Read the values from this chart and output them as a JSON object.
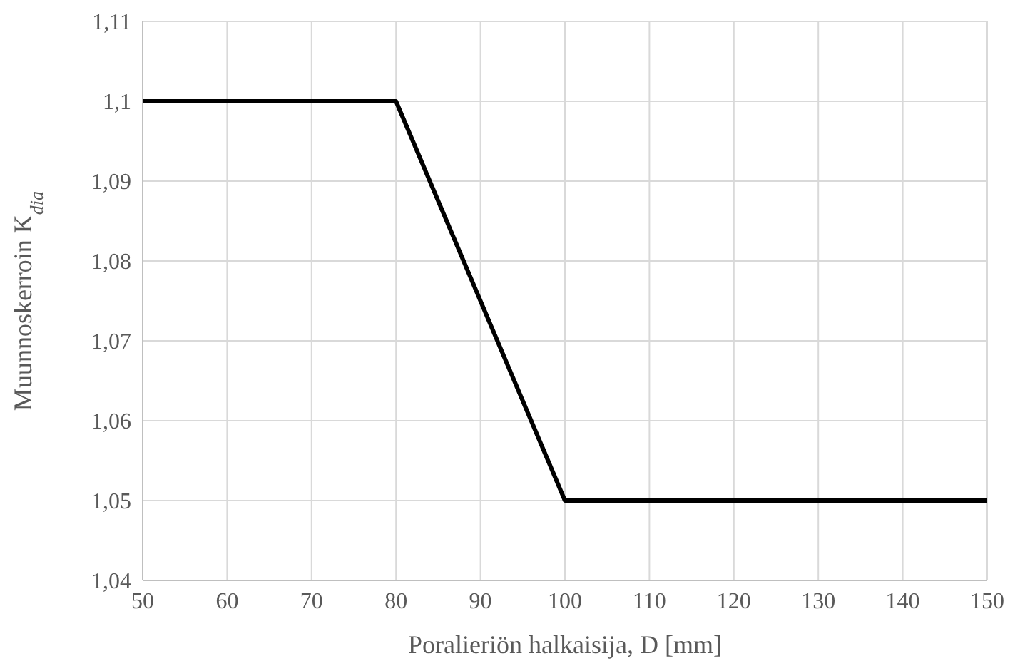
{
  "chart_data": {
    "type": "line",
    "xlabel": "Poralieriön halkaisija, D [mm]",
    "ylabel": "Muunnoskerroin K$_{dia}$",
    "x": [
      50,
      80,
      100,
      150
    ],
    "series": [
      {
        "color": "#000000",
        "values": [
          1.1,
          1.1,
          1.05,
          1.05
        ]
      }
    ],
    "xlim": [
      50,
      150
    ],
    "xticks": [
      50,
      60,
      70,
      80,
      90,
      100,
      110,
      120,
      130,
      140,
      150
    ],
    "ylim": [
      1.04,
      1.11
    ],
    "yticks": [
      {
        "value": 1.04,
        "label": "1,04"
      },
      {
        "value": 1.05,
        "label": "1,05"
      },
      {
        "value": 1.06,
        "label": "1,06"
      },
      {
        "value": 1.07,
        "label": "1,07"
      },
      {
        "value": 1.08,
        "label": "1,08"
      },
      {
        "value": 1.09,
        "label": "1,09"
      },
      {
        "value": 1.1,
        "label": "1,1"
      },
      {
        "value": 1.11,
        "label": "1,11"
      }
    ],
    "grid": true,
    "legend": false,
    "marker": "none",
    "line_style": "solid"
  }
}
